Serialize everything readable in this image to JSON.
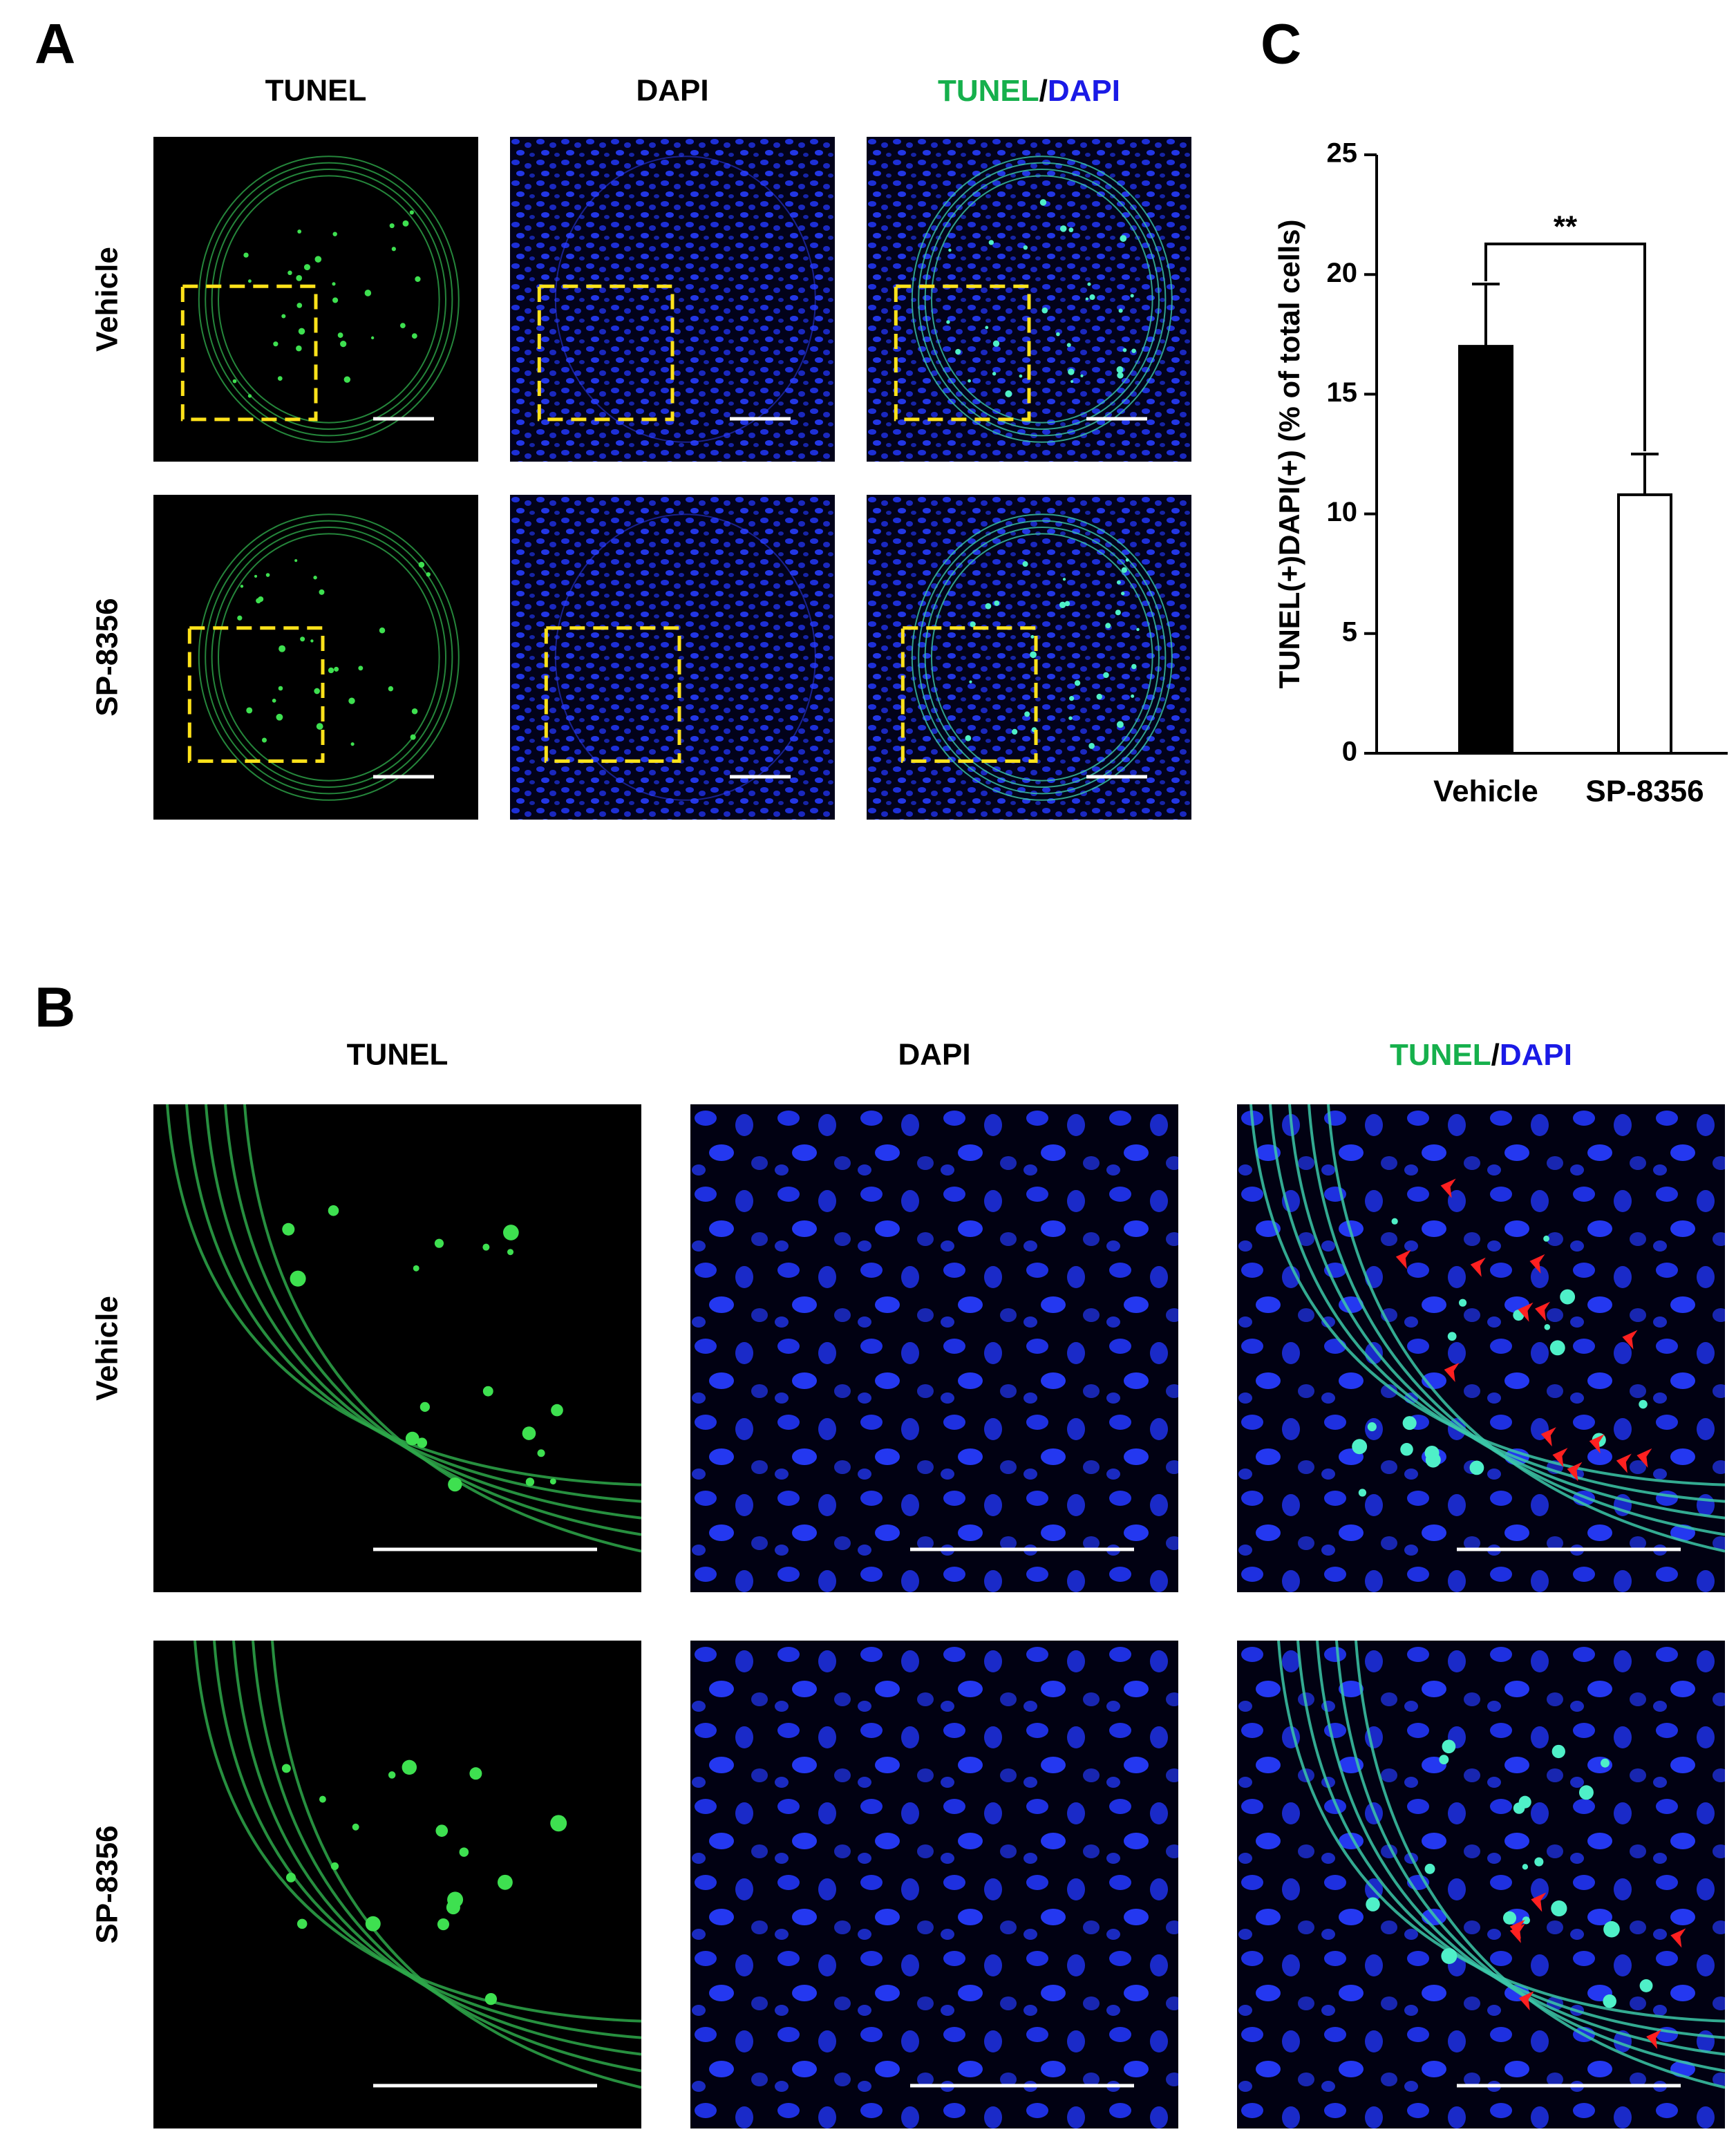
{
  "panel_a": {
    "label": "A",
    "columns": [
      "TUNEL",
      "DAPI"
    ],
    "merge_column": [
      "TUNEL",
      "/",
      "DAPI"
    ],
    "rows": [
      "Vehicle",
      "SP-8356"
    ]
  },
  "panel_b": {
    "label": "B",
    "columns": [
      "TUNEL",
      "DAPI"
    ],
    "merge_column": [
      "TUNEL",
      "/",
      "DAPI"
    ],
    "rows": [
      "Vehicle",
      "SP-8356"
    ]
  },
  "chart_data": {
    "type": "bar",
    "panel_label": "C",
    "ylabel": "TUNEL(+)DAPI(+) (% of total cells)",
    "categories": [
      "Vehicle",
      "SP-8356"
    ],
    "values": [
      17.0,
      10.8
    ],
    "errors": [
      2.6,
      1.7
    ],
    "colors": [
      "#000000",
      "#ffffff"
    ],
    "edgecolor": "#000000",
    "ylim": [
      0,
      25
    ],
    "yticks": [
      0,
      5,
      10,
      15,
      20,
      25
    ],
    "annotation": "**"
  }
}
